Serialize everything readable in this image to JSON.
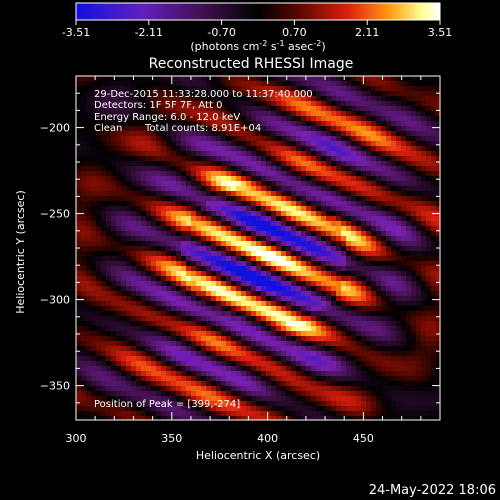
{
  "chart_data": {
    "type": "heatmap",
    "title": "Reconstructed RHESSI Image",
    "xlabel": "Heliocentric X (arcsec)",
    "ylabel": "Heliocentric Y (arcsec)",
    "xlim": [
      300,
      490
    ],
    "ylim": [
      -370,
      -170
    ],
    "x_ticks": [
      300,
      350,
      400,
      450
    ],
    "y_ticks": [
      -350,
      -300,
      -250,
      -200
    ],
    "colorbar": {
      "min": -3.51,
      "max": 3.51,
      "ticks": [
        "-3.51",
        "-2.11",
        "-0.70",
        "0.70",
        "2.11",
        "3.51"
      ],
      "units_prefix": "(photons cm",
      "units_exp1": "-2",
      "units_mid1": " s",
      "units_exp2": "-1",
      "units_mid2": " asec",
      "units_exp3": "-2",
      "units_suffix": ")",
      "colors": [
        "#1010e0",
        "#7a20b0",
        "#3a0f40",
        "#000000",
        "#6a0a00",
        "#e02010",
        "#ff9a10",
        "#ffff90",
        "#ffffff"
      ]
    },
    "annotations": {
      "time": "29-Dec-2015 11:33:28.000 to 11:37:40.000",
      "detectors": "Detectors: 1F 5F 7F, Att 0",
      "energy": "Energy Range: 6.0 - 12.0 keV",
      "clean": "Clean",
      "counts": "Total counts: 8.91E+04",
      "peak": "Position of Peak = [399,-274]"
    },
    "peak": {
      "x": 399,
      "y": -274,
      "value": 3.51
    }
  },
  "footer": {
    "timestamp": "24-May-2022 18:06"
  }
}
